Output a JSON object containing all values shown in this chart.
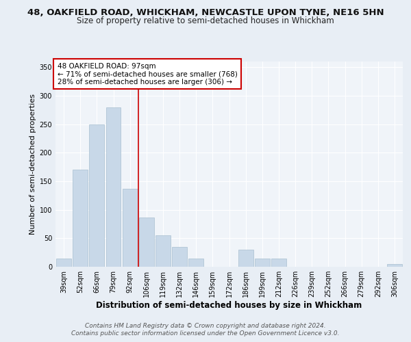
{
  "title1": "48, OAKFIELD ROAD, WHICKHAM, NEWCASTLE UPON TYNE, NE16 5HN",
  "title2": "Size of property relative to semi-detached houses in Whickham",
  "xlabel": "Distribution of semi-detached houses by size in Whickham",
  "ylabel": "Number of semi-detached properties",
  "footer": "Contains HM Land Registry data © Crown copyright and database right 2024.\nContains public sector information licensed under the Open Government Licence v3.0.",
  "categories": [
    "39sqm",
    "52sqm",
    "66sqm",
    "79sqm",
    "92sqm",
    "106sqm",
    "119sqm",
    "132sqm",
    "146sqm",
    "159sqm",
    "172sqm",
    "186sqm",
    "199sqm",
    "212sqm",
    "226sqm",
    "239sqm",
    "252sqm",
    "266sqm",
    "279sqm",
    "292sqm",
    "306sqm"
  ],
  "values": [
    15,
    170,
    250,
    280,
    137,
    87,
    55,
    35,
    15,
    0,
    0,
    30,
    15,
    15,
    0,
    0,
    0,
    0,
    0,
    0,
    5
  ],
  "bar_color": "#c8d8e8",
  "bar_edge_color": "#a8bfd0",
  "vline_x_index": 4.5,
  "vline_color": "#cc0000",
  "annotation_text": "48 OAKFIELD ROAD: 97sqm\n← 71% of semi-detached houses are smaller (768)\n28% of semi-detached houses are larger (306) →",
  "ylim": [
    0,
    360
  ],
  "yticks": [
    0,
    50,
    100,
    150,
    200,
    250,
    300,
    350
  ],
  "bg_color": "#e8eef5",
  "plot_bg_color": "#f0f4f9",
  "grid_color": "#ffffff",
  "title1_fontsize": 9.5,
  "title2_fontsize": 8.5,
  "xlabel_fontsize": 8.5,
  "ylabel_fontsize": 8,
  "tick_fontsize": 7,
  "ann_fontsize": 7.5,
  "footer_fontsize": 6.5
}
